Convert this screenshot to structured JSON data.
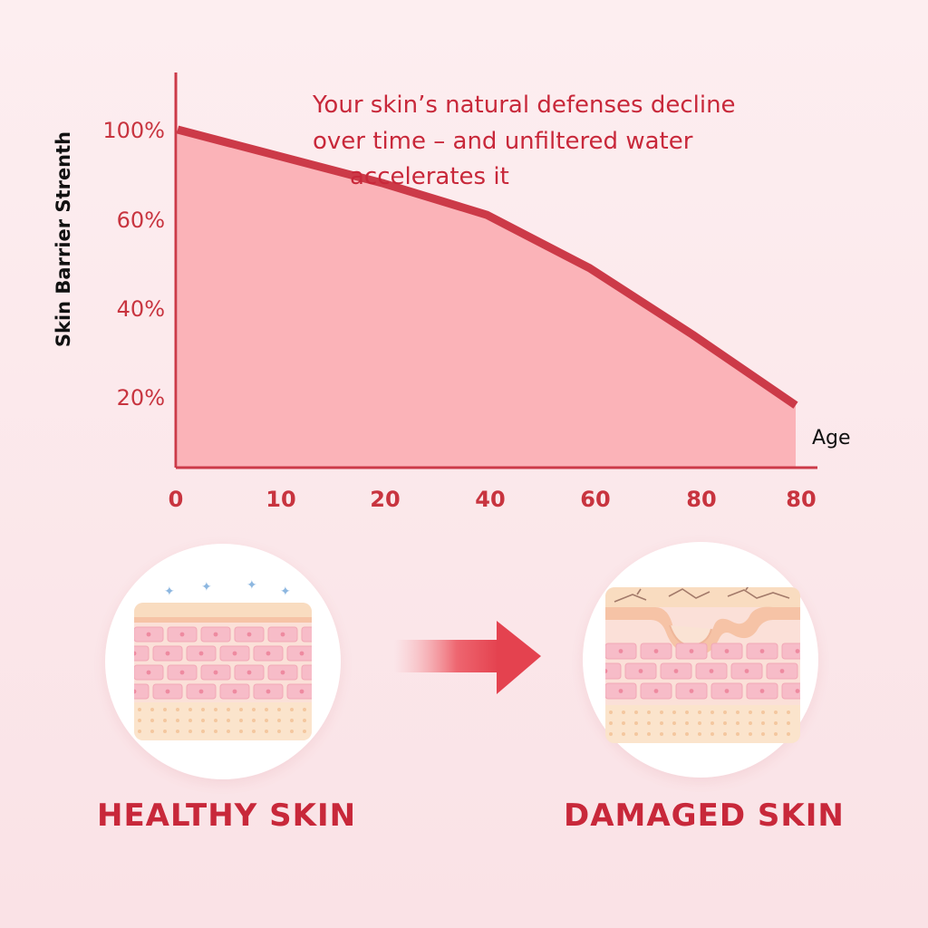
{
  "chart_data": {
    "type": "area",
    "ylabel": "Skin Barrier Strenth",
    "xlabel": "Age",
    "y_ticks": [
      "100%",
      "60%",
      "40%",
      "20%"
    ],
    "x_ticks": [
      "0",
      "10",
      "20",
      "40",
      "60",
      "80",
      "80"
    ],
    "annotation_lines": [
      "Your skin’s natural defenses decline",
      "over time – and unfiltered water",
      "accelerates it"
    ],
    "x": [
      0,
      10,
      20,
      40,
      60,
      80,
      80
    ],
    "values": [
      100,
      88,
      76,
      62,
      49,
      34,
      18
    ],
    "grid": false,
    "colors": {
      "line": "#cc3a48",
      "fill": "#fbb3b8",
      "text": "#c8283a"
    }
  },
  "panels": {
    "healthy_label": "HEALTHY SKIN",
    "damaged_label": "DAMAGED SKIN"
  }
}
